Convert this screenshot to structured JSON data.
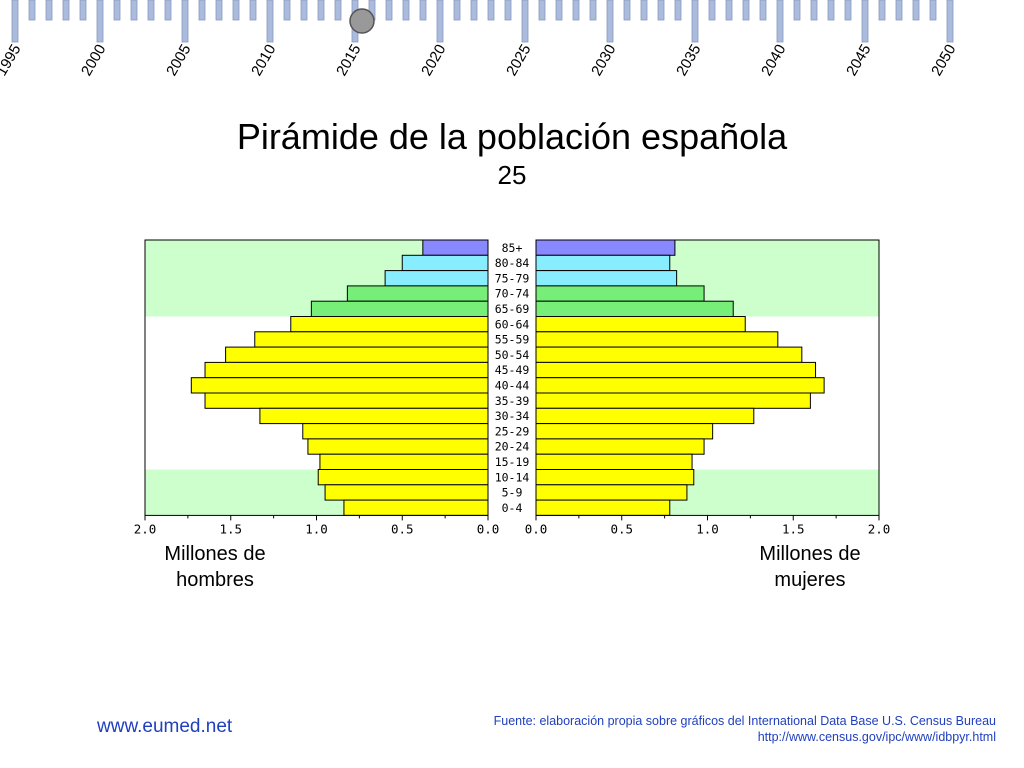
{
  "timeline": {
    "years": [
      "1995",
      "2000",
      "2005",
      "2010",
      "2015",
      "2020",
      "2025",
      "2030",
      "2035",
      "2040",
      "2045",
      "2050"
    ],
    "selected": "2015"
  },
  "chart_data": {
    "type": "bar",
    "title": "Pirámide de la población española",
    "subtitle": "25",
    "categories": [
      "85+",
      "80-84",
      "75-79",
      "70-74",
      "65-69",
      "60-64",
      "55-59",
      "50-54",
      "45-49",
      "40-44",
      "35-39",
      "30-34",
      "25-29",
      "20-24",
      "15-19",
      "10-14",
      "5-9",
      "0-4"
    ],
    "series": [
      {
        "name": "Millones de hombres",
        "values": [
          0.38,
          0.5,
          0.6,
          0.82,
          1.03,
          1.15,
          1.36,
          1.53,
          1.65,
          1.73,
          1.65,
          1.33,
          1.08,
          1.05,
          0.98,
          0.99,
          0.95,
          0.84
        ]
      },
      {
        "name": "Millones de mujeres",
        "values": [
          0.81,
          0.78,
          0.82,
          0.98,
          1.15,
          1.22,
          1.41,
          1.55,
          1.63,
          1.68,
          1.6,
          1.27,
          1.03,
          0.98,
          0.91,
          0.92,
          0.88,
          0.78
        ]
      }
    ],
    "xlim": [
      0,
      2.0
    ],
    "ticks": [
      "2.0",
      "1.5",
      "1.0",
      "0.5",
      "0.0"
    ],
    "ticks_right": [
      "0.0",
      "0.5",
      "1.0",
      "1.5",
      "2.0"
    ],
    "xlabel_left": "Millones de hombres",
    "xlabel_right": "Millones de mujeres",
    "colors": {
      "yellow": "#ffff00",
      "green": "#77ee77",
      "cyan": "#88eeff",
      "blue": "#8888ff",
      "band": "#ccffcc",
      "edge": "#000000"
    }
  },
  "footer": {
    "site": "www.eumed.net",
    "source_line1": "Fuente: elaboración propia sobre gráficos del International Data Base U.S. Census Bureau",
    "source_line2": "http://www.census.gov/ipc/www/idbpyr.html"
  }
}
